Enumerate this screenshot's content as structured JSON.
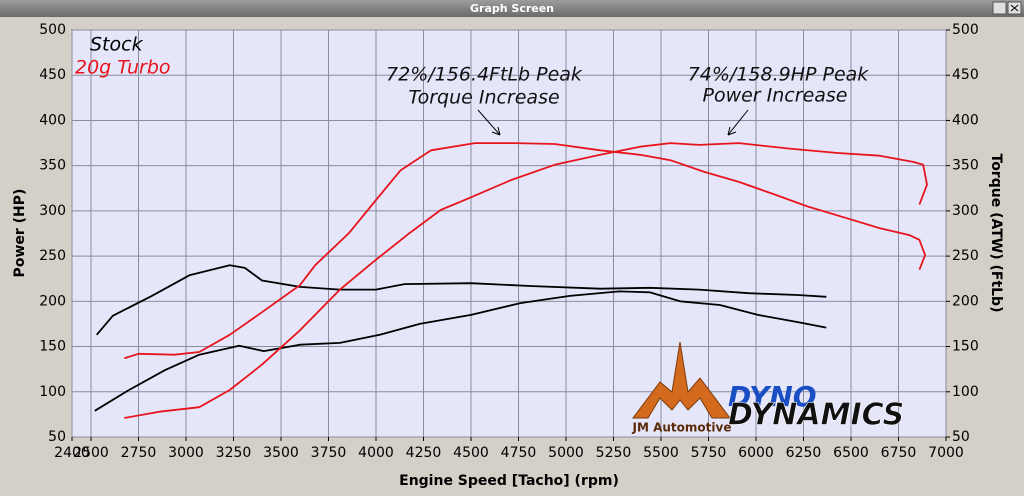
{
  "window_title": "Graph Screen",
  "chart_data": {
    "type": "line",
    "xlabel": "Engine Speed [Tacho] (rpm)",
    "ylabel": "Power (HP)",
    "y2label": "Torque (ATW) (FtLb)",
    "xlim": [
      2400,
      7000
    ],
    "xticks": [
      2400,
      2500,
      2750,
      3000,
      3250,
      3500,
      3750,
      4000,
      4250,
      4500,
      4750,
      5000,
      5250,
      5500,
      5750,
      6000,
      6250,
      6500,
      6750,
      7000
    ],
    "ylim": [
      50,
      500
    ],
    "yticks": [
      50,
      100,
      150,
      200,
      250,
      300,
      350,
      400,
      450,
      500
    ],
    "y2lim": [
      50,
      500
    ],
    "y2ticks": [
      50,
      100,
      150,
      200,
      250,
      300,
      350,
      400,
      450,
      500
    ],
    "grid": true,
    "legend": [
      {
        "label": "Stock",
        "color": "#000000"
      },
      {
        "label": "20g Turbo",
        "color": "#e8141c"
      }
    ],
    "series": [
      {
        "color": "#000000",
        "axis": "y2",
        "x": [
          2530,
          2615,
          2820,
          3020,
          3230,
          3310,
          3400,
          3600,
          3810,
          4000,
          4150,
          4500,
          4810,
          5180,
          5440,
          5700,
          5960,
          6220,
          6370
        ],
        "values": [
          163,
          184,
          206,
          229,
          240,
          237,
          223,
          216,
          213,
          213,
          219,
          220,
          217,
          214,
          215,
          213,
          209,
          207,
          205
        ]
      },
      {
        "color": "#000000",
        "axis": "y",
        "x": [
          2520,
          2700,
          2890,
          3070,
          3280,
          3410,
          3600,
          3810,
          4020,
          4230,
          4500,
          4760,
          5020,
          5280,
          5440,
          5600,
          5810,
          6010,
          6220,
          6370
        ],
        "values": [
          79,
          102,
          124,
          141,
          151,
          145,
          152,
          154,
          163,
          175,
          185,
          198,
          206,
          211,
          210,
          200,
          196,
          185,
          177,
          171
        ]
      },
      {
        "color": "#e8141c",
        "axis": "y2",
        "x": [
          2675,
          2750,
          2940,
          3070,
          3230,
          3400,
          3600,
          3680,
          3860,
          4000,
          4130,
          4290,
          4520,
          4730,
          4940,
          5180,
          5390,
          5550,
          5730,
          5910,
          6100,
          6270,
          6460,
          6650,
          6810,
          6860,
          6890,
          6860
        ],
        "values": [
          137,
          142,
          141,
          144,
          163,
          188,
          218,
          240,
          276,
          312,
          345,
          367,
          375,
          375,
          374,
          367,
          362,
          356,
          343,
          332,
          318,
          305,
          293,
          281,
          273,
          268,
          251,
          235
        ]
      },
      {
        "color": "#e8141c",
        "axis": "y",
        "x": [
          2675,
          2860,
          3070,
          3230,
          3400,
          3600,
          3810,
          4000,
          4180,
          4340,
          4500,
          4710,
          4940,
          5180,
          5390,
          5550,
          5700,
          5910,
          6170,
          6430,
          6650,
          6830,
          6880,
          6900,
          6860
        ],
        "values": [
          71,
          78,
          83,
          102,
          130,
          168,
          213,
          246,
          276,
          301,
          315,
          334,
          351,
          362,
          371,
          375,
          373,
          375,
          369,
          364,
          361,
          354,
          351,
          329,
          307
        ]
      }
    ],
    "annotations": [
      {
        "lines": [
          "72%/156.4FtLb Peak",
          "Torque Increase"
        ]
      },
      {
        "lines": [
          "74%/158.9HP Peak",
          "Power Increase"
        ]
      }
    ]
  },
  "logos": {
    "jm": "JM Automotive",
    "dyno": "DYNO",
    "dynamics": "DYNAMICS"
  }
}
